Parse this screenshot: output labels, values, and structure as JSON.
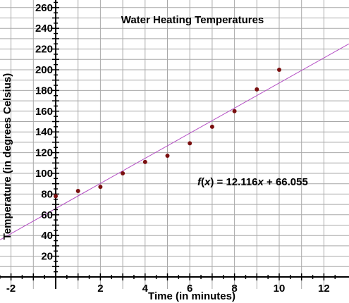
{
  "chart_data": {
    "type": "scatter",
    "title": "Water Heating Temperatures",
    "xlabel": "Time (in minutes)",
    "ylabel": "Temperature (in degrees Celsius)",
    "xlim": [
      -2.5,
      12.8
    ],
    "ylim": [
      -15,
      265
    ],
    "x_ticks": [
      -2,
      2,
      4,
      6,
      8,
      10,
      12
    ],
    "y_ticks": [
      20,
      40,
      60,
      80,
      100,
      120,
      140,
      160,
      180,
      200,
      220,
      240,
      260
    ],
    "grid": true,
    "points": [
      {
        "x": 0,
        "y": 78
      },
      {
        "x": 1,
        "y": 83
      },
      {
        "x": 2,
        "y": 87
      },
      {
        "x": 3,
        "y": 100
      },
      {
        "x": 4,
        "y": 111
      },
      {
        "x": 5,
        "y": 117
      },
      {
        "x": 6,
        "y": 129
      },
      {
        "x": 7,
        "y": 145
      },
      {
        "x": 8,
        "y": 160
      },
      {
        "x": 9,
        "y": 181
      },
      {
        "x": 10,
        "y": 200
      }
    ],
    "fit": {
      "slope": 12.116,
      "intercept": 66.055,
      "label_prefix": "f",
      "label_var": "x",
      "label_rest": " = 12.116",
      "label_suffix": " + 66.055"
    },
    "colors": {
      "point": "#7a1010",
      "fit_line": "#b44ec4",
      "grid": "#a9a9a9",
      "axis": "#000000"
    }
  }
}
